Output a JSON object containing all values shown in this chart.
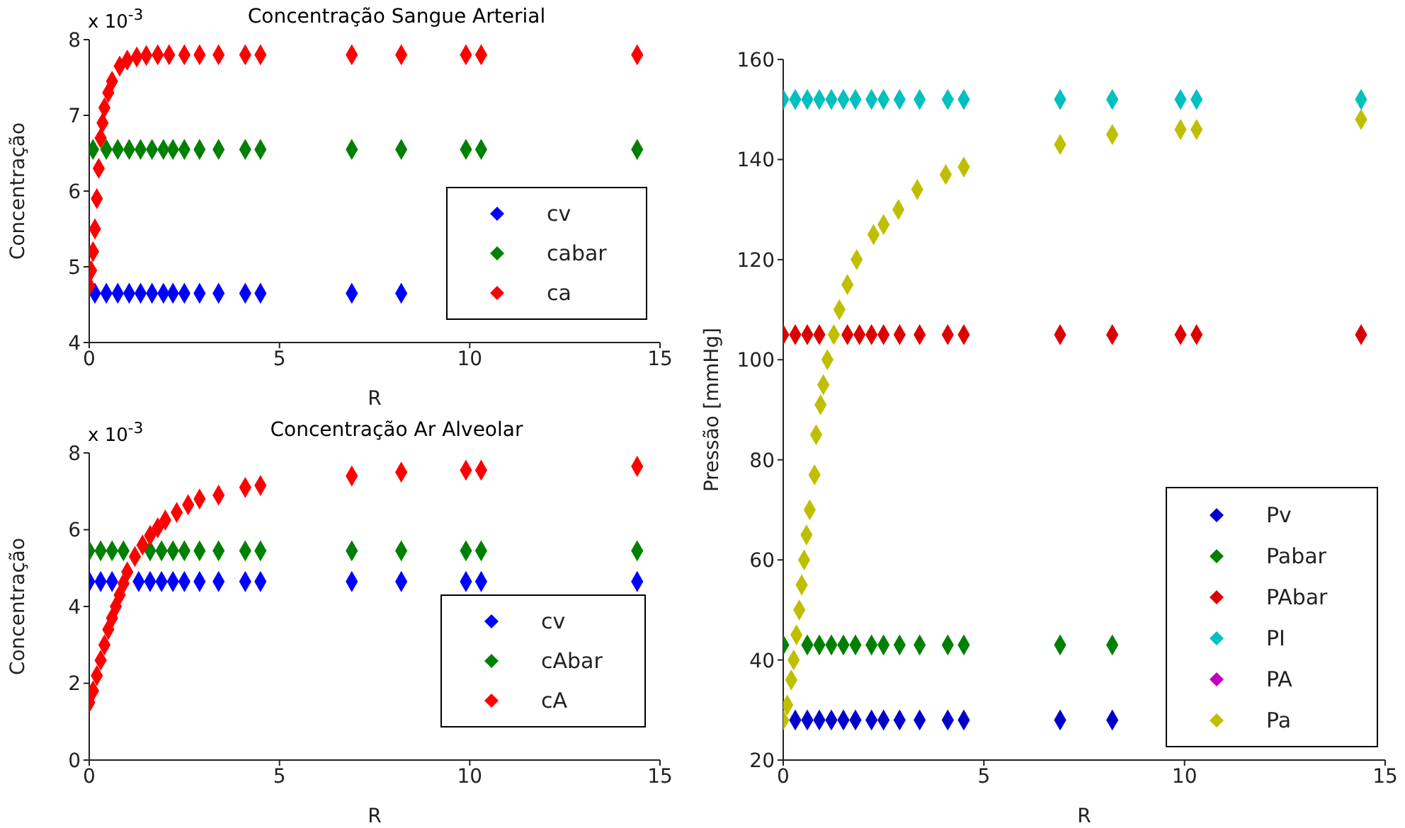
{
  "chart_data": [
    {
      "type": "scatter",
      "title": "Concentração Sangue Arterial",
      "xlabel": "R",
      "ylabel": "Concentração",
      "annotations": [
        "x 10$^{-3}$"
      ],
      "xlim": [
        0,
        15
      ],
      "xticks": [
        0,
        5,
        10,
        15
      ],
      "ylim": [
        4,
        8
      ],
      "yticks": [
        4,
        5,
        6,
        7,
        8
      ],
      "grid": false,
      "legend": "bottom right",
      "marker": "diamond",
      "series": [
        {
          "name": "cv",
          "color": "#0000ff",
          "x": [
            0.15,
            0.45,
            0.75,
            1.05,
            1.35,
            1.65,
            1.95,
            2.2,
            2.5,
            2.9,
            3.4,
            4.1,
            4.5,
            6.9,
            8.2
          ],
          "values": [
            4.65,
            4.65,
            4.65,
            4.65,
            4.65,
            4.65,
            4.65,
            4.65,
            4.65,
            4.65,
            4.65,
            4.65,
            4.65,
            4.65,
            4.65
          ]
        },
        {
          "name": "cabar",
          "color": "#008000",
          "x": [
            0.1,
            0.45,
            0.75,
            1.05,
            1.35,
            1.65,
            1.95,
            2.2,
            2.5,
            2.9,
            3.4,
            4.1,
            4.5,
            6.9,
            8.2,
            9.9,
            10.3,
            14.4
          ],
          "values": [
            6.55,
            6.55,
            6.55,
            6.55,
            6.55,
            6.55,
            6.55,
            6.55,
            6.55,
            6.55,
            6.55,
            6.55,
            6.55,
            6.55,
            6.55,
            6.55,
            6.55,
            6.55
          ]
        },
        {
          "name": "ca",
          "color": "#ff0000",
          "x": [
            0,
            0.05,
            0.1,
            0.15,
            0.2,
            0.25,
            0.3,
            0.35,
            0.4,
            0.5,
            0.6,
            0.8,
            1.0,
            1.25,
            1.5,
            1.8,
            2.1,
            2.5,
            2.9,
            3.4,
            4.1,
            4.5,
            6.9,
            8.2,
            9.9,
            10.3,
            14.4
          ],
          "values": [
            4.75,
            4.95,
            5.2,
            5.5,
            5.9,
            6.3,
            6.7,
            6.9,
            7.1,
            7.3,
            7.45,
            7.65,
            7.73,
            7.77,
            7.79,
            7.8,
            7.8,
            7.8,
            7.8,
            7.8,
            7.8,
            7.8,
            7.8,
            7.8,
            7.8,
            7.8,
            7.8
          ]
        }
      ]
    },
    {
      "type": "scatter",
      "title": "Concentração Ar Alveolar",
      "xlabel": "R",
      "ylabel": "Concentração",
      "annotations": [
        "x 10$^{-3}$"
      ],
      "xlim": [
        0,
        15
      ],
      "xticks": [
        0,
        5,
        10,
        15
      ],
      "ylim": [
        0,
        8
      ],
      "yticks": [
        0,
        2,
        4,
        6,
        8
      ],
      "grid": false,
      "legend": "bottom right",
      "marker": "diamond",
      "series": [
        {
          "name": "cv",
          "color": "#0000ff",
          "x": [
            0,
            0.3,
            0.6,
            1.3,
            1.6,
            1.9,
            2.2,
            2.5,
            2.9,
            3.4,
            4.1,
            4.5,
            6.9,
            8.2,
            9.9,
            10.3,
            14.4
          ],
          "values": [
            4.65,
            4.65,
            4.65,
            4.65,
            4.65,
            4.65,
            4.65,
            4.65,
            4.65,
            4.65,
            4.65,
            4.65,
            4.65,
            4.65,
            4.65,
            4.65,
            4.65
          ]
        },
        {
          "name": "cAbar",
          "color": "#008000",
          "x": [
            0,
            0.3,
            0.6,
            0.9,
            1.6,
            1.9,
            2.2,
            2.5,
            2.9,
            3.4,
            4.1,
            4.5,
            6.9,
            8.2,
            9.9,
            10.3,
            14.4
          ],
          "values": [
            5.45,
            5.45,
            5.45,
            5.45,
            5.45,
            5.45,
            5.45,
            5.45,
            5.45,
            5.45,
            5.45,
            5.45,
            5.45,
            5.45,
            5.45,
            5.45,
            5.45
          ]
        },
        {
          "name": "cA",
          "color": "#ff0000",
          "x": [
            0,
            0.1,
            0.2,
            0.3,
            0.4,
            0.5,
            0.6,
            0.7,
            0.8,
            0.9,
            1.0,
            1.2,
            1.4,
            1.6,
            1.8,
            2.0,
            2.3,
            2.6,
            2.9,
            3.4,
            4.1,
            4.5,
            6.9,
            8.2,
            9.9,
            10.3,
            14.4
          ],
          "values": [
            1.5,
            1.8,
            2.2,
            2.6,
            3.0,
            3.4,
            3.7,
            4.0,
            4.3,
            4.6,
            4.9,
            5.3,
            5.6,
            5.85,
            6.05,
            6.25,
            6.45,
            6.65,
            6.8,
            6.9,
            7.1,
            7.15,
            7.4,
            7.5,
            7.55,
            7.55,
            7.65
          ]
        }
      ]
    },
    {
      "type": "scatter",
      "xlabel": "R",
      "ylabel": "Pressão [mmHg]",
      "xlim": [
        0,
        15
      ],
      "xticks": [
        0,
        5,
        10,
        15
      ],
      "ylim": [
        20,
        160
      ],
      "yticks": [
        20,
        40,
        60,
        80,
        100,
        120,
        140,
        160
      ],
      "grid": false,
      "legend": "bottom right",
      "marker": "diamond",
      "series": [
        {
          "name": "Pv",
          "color": "#0000cc",
          "x": [
            0.3,
            0.6,
            0.9,
            1.2,
            1.5,
            1.8,
            2.2,
            2.5,
            2.9,
            3.4,
            4.1,
            4.5,
            6.9,
            8.2
          ],
          "values": [
            28,
            28,
            28,
            28,
            28,
            28,
            28,
            28,
            28,
            28,
            28,
            28,
            28,
            28
          ]
        },
        {
          "name": "Pabar",
          "color": "#008000",
          "x": [
            0,
            0.6,
            0.9,
            1.2,
            1.5,
            1.8,
            2.2,
            2.5,
            2.9,
            3.4,
            4.1,
            4.5,
            6.9,
            8.2
          ],
          "values": [
            43,
            43,
            43,
            43,
            43,
            43,
            43,
            43,
            43,
            43,
            43,
            43,
            43,
            43
          ]
        },
        {
          "name": "PAbar",
          "color": "#dd0000",
          "x": [
            0,
            0.3,
            0.6,
            0.9,
            1.6,
            1.9,
            2.2,
            2.5,
            2.9,
            3.4,
            4.1,
            4.5,
            6.9,
            8.2,
            9.9,
            10.3,
            14.4
          ],
          "values": [
            105,
            105,
            105,
            105,
            105,
            105,
            105,
            105,
            105,
            105,
            105,
            105,
            105,
            105,
            105,
            105,
            105
          ]
        },
        {
          "name": "PI",
          "color": "#00c0c0",
          "x": [
            0,
            0.3,
            0.6,
            0.9,
            1.2,
            1.5,
            1.8,
            2.2,
            2.5,
            2.9,
            3.4,
            4.1,
            4.5,
            6.9,
            8.2,
            9.9,
            10.3,
            14.4
          ],
          "values": [
            152,
            152,
            152,
            152,
            152,
            152,
            152,
            152,
            152,
            152,
            152,
            152,
            152,
            152,
            152,
            152,
            152,
            152
          ]
        },
        {
          "name": "PA",
          "color": "#bf00bf"
        },
        {
          "name": "Pa",
          "color": "#bfbf00",
          "x": [
            0,
            0.1,
            0.2,
            0.26,
            0.33,
            0.4,
            0.46,
            0.52,
            0.58,
            0.66,
            0.78,
            0.82,
            0.93,
            1.0,
            1.1,
            1.26,
            1.4,
            1.6,
            1.83,
            2.25,
            2.5,
            2.87,
            3.34,
            4.05,
            4.5,
            6.9,
            8.2,
            9.9,
            10.3,
            14.4
          ],
          "values": [
            28,
            31,
            36,
            40,
            45,
            50,
            55,
            60,
            65,
            70,
            77,
            85,
            91,
            95,
            100,
            105,
            110,
            115,
            120,
            125,
            127,
            130,
            134,
            137,
            138.5,
            143,
            145,
            146,
            146,
            148
          ]
        }
      ]
    }
  ]
}
